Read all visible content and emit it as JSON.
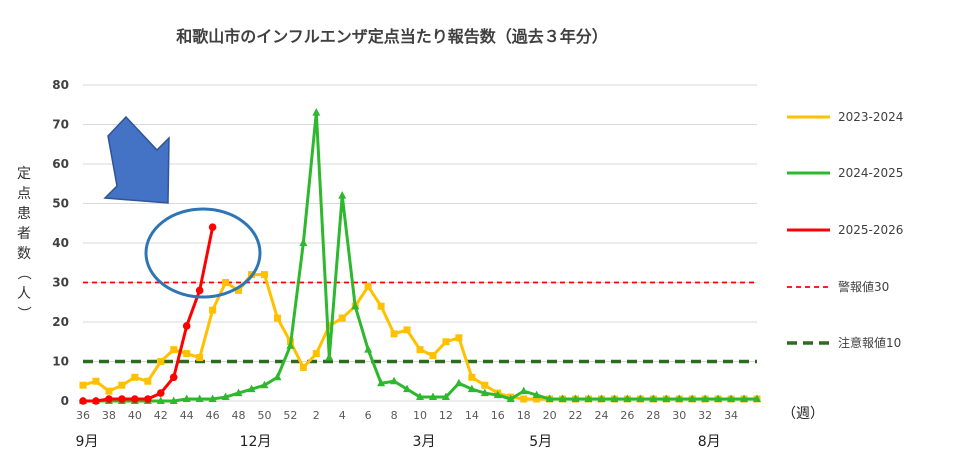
{
  "chart_data": {
    "type": "line",
    "title": "和歌山市のインフルエンザ定点当たり報告数（過去３年分）",
    "ylabel": "定点患者数（人）",
    "xlabel": "（週）",
    "ylim": [
      0,
      80
    ],
    "yticks": [
      0,
      10,
      20,
      30,
      40,
      50,
      60,
      70,
      80
    ],
    "grid": true,
    "legend_position": "right",
    "x_tick_labels": [
      "36",
      "38",
      "40",
      "42",
      "44",
      "46",
      "48",
      "50",
      "52",
      "2",
      "4",
      "6",
      "8",
      "10",
      "12",
      "14",
      "16",
      "18",
      "20",
      "22",
      "24",
      "26",
      "28",
      "30",
      "32",
      "34"
    ],
    "month_labels": [
      {
        "label": "9月",
        "week_index": 0
      },
      {
        "label": "12月",
        "week_index": 13
      },
      {
        "label": "3月",
        "week_index": 26
      },
      {
        "label": "5月",
        "week_index": 35
      },
      {
        "label": "8月",
        "week_index": 48
      }
    ],
    "series": [
      {
        "name": "2023-2024",
        "color": "#FFC000",
        "marker": "square",
        "values": [
          4,
          5,
          2.5,
          4,
          6,
          5,
          10,
          13,
          12,
          11,
          23,
          30,
          28,
          32,
          32,
          21,
          15,
          8.5,
          12,
          19,
          21,
          24,
          29,
          24,
          17,
          18,
          13,
          11.5,
          15,
          16,
          6,
          4,
          2,
          1,
          0.5,
          0.5,
          0.5,
          0.5,
          0.5,
          0.5,
          0.5,
          0.5,
          0.5,
          0.5,
          0.5,
          0.5,
          0.5,
          0.5,
          0.5,
          0.5,
          0.5,
          0.5,
          0.5
        ]
      },
      {
        "name": "2024-2025",
        "color": "#2DB82D",
        "marker": "triangle",
        "values": [
          0,
          0,
          0,
          0,
          0,
          0,
          0,
          0,
          0.5,
          0.5,
          0.5,
          1,
          2,
          3,
          4,
          6,
          14,
          40,
          73,
          11,
          52,
          24,
          13,
          4.5,
          5,
          3,
          1,
          1,
          1,
          4.5,
          3,
          2,
          1.5,
          0.5,
          2.5,
          1.5,
          0.5,
          0.5,
          0.5,
          0.5,
          0.5,
          0.5,
          0.5,
          0.5,
          0.5,
          0.5,
          0.5,
          0.5,
          0.5,
          0.5,
          0.5,
          0.5,
          0.5
        ]
      },
      {
        "name": "2025-2026",
        "color": "#FF0000",
        "marker": "circle",
        "values": [
          0,
          0,
          0.5,
          0.5,
          0.5,
          0.5,
          2,
          6,
          19,
          28,
          44
        ]
      }
    ],
    "reference_lines": [
      {
        "name": "警報値30",
        "value": 30,
        "color": "#FF0000"
      },
      {
        "name": "注意報値10",
        "value": 10,
        "color": "#2E6B1E"
      }
    ]
  },
  "colors": {
    "arrow": "#4472C4",
    "circle": "#2E75B6",
    "grid": "#D9D9D9"
  }
}
